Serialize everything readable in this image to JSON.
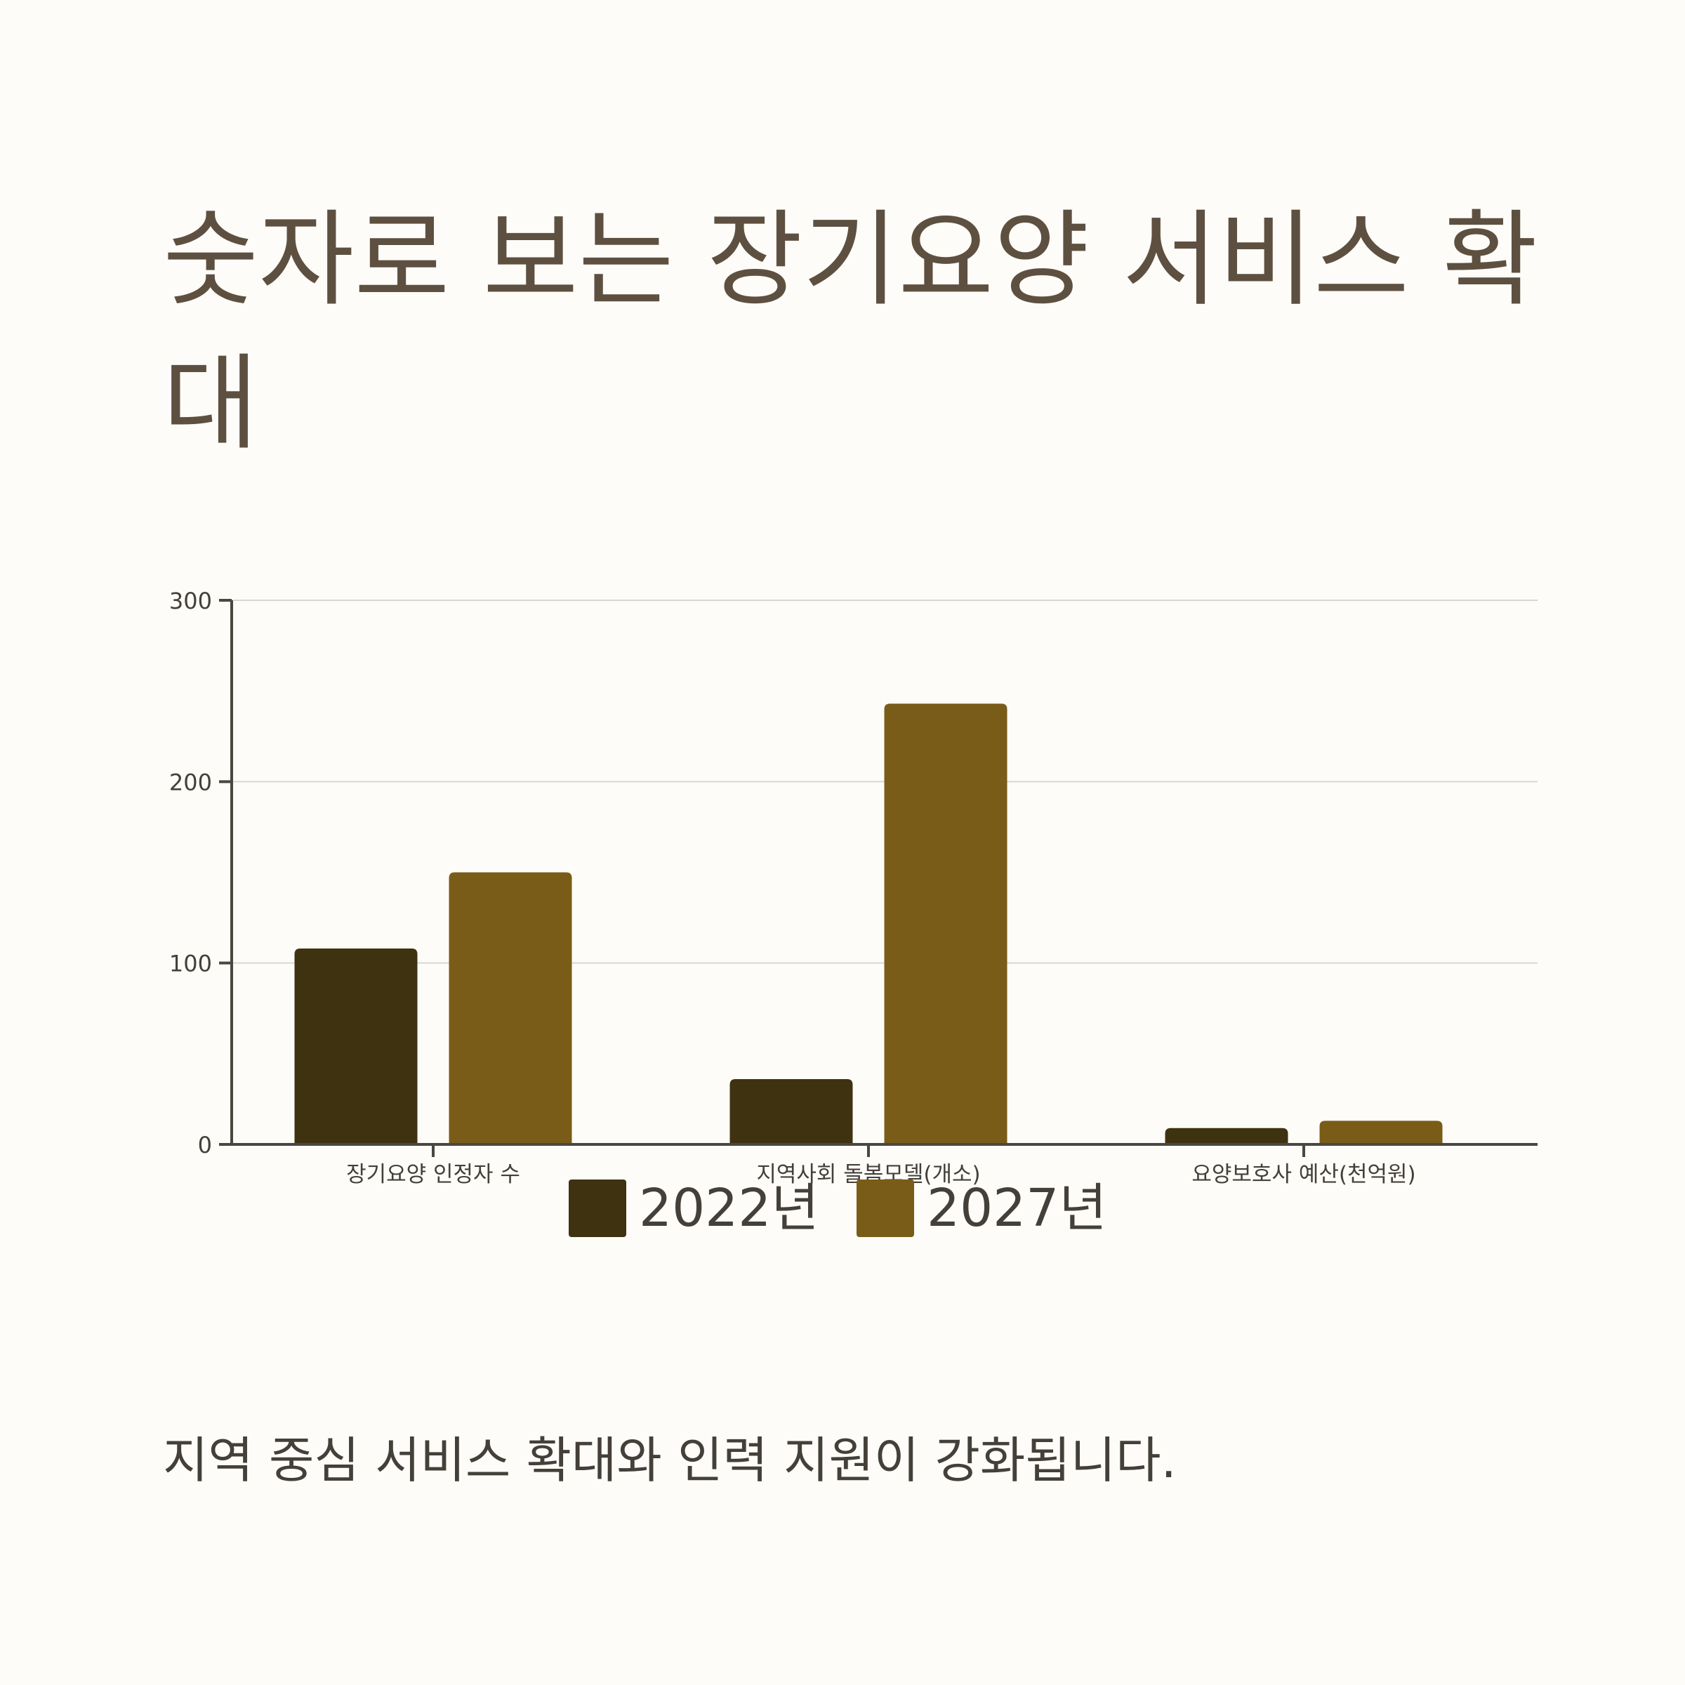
{
  "title": "숫자로 보는 장기요양 서비스 확대",
  "caption": "지역 중심 서비스 확대와 인력 지원이 강화됩니다.",
  "colors": {
    "background": "#fdfcf8",
    "title": "#5e5040",
    "text": "#444039",
    "axis": "#4a4640",
    "grid": "#d9d7d2"
  },
  "chart_data": {
    "type": "bar",
    "categories": [
      "장기요양 인정자 수",
      "지역사회 돌봄모델(개소)",
      "요양보호사 예산(천억원)"
    ],
    "series": [
      {
        "name": "2022년",
        "color": "#3f3210",
        "values": [
          108,
          36,
          9
        ]
      },
      {
        "name": "2027년",
        "color": "#7a5c19",
        "values": [
          150,
          243,
          13
        ]
      }
    ],
    "ylim": [
      0,
      300
    ],
    "yticks": [
      0,
      100,
      200,
      300
    ],
    "ytick_labels": [
      "0",
      "100",
      "200",
      "300"
    ],
    "grid": true,
    "legend_position": "bottom-center"
  }
}
